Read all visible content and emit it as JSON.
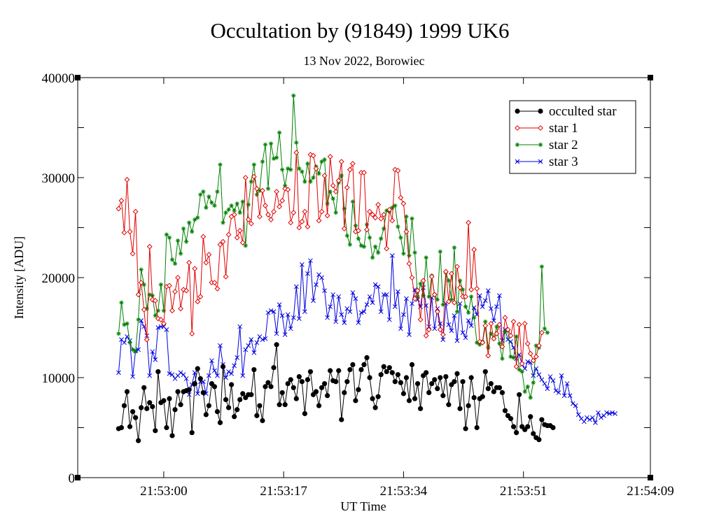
{
  "chart_data": {
    "type": "line",
    "title": "Occultation by (91849) 1999 UK6",
    "subtitle": "13 Nov 2022, Borowiec",
    "xlabel": "UT Time",
    "ylabel": "Intensity [ADU]",
    "x_ticks": [
      "21:53:00",
      "21:53:17",
      "21:53:34",
      "21:53:51",
      "21:54:09"
    ],
    "x_tick_seconds": [
      0,
      17,
      34,
      51,
      69
    ],
    "xlim_seconds": [
      -12.2,
      69
    ],
    "y_ticks": [
      0,
      10000,
      20000,
      30000,
      40000
    ],
    "ylim": [
      0,
      40000
    ],
    "grid": false,
    "legend_position": "top-right",
    "series": [
      {
        "name": "occulted star",
        "color": "#000000",
        "marker": "dot",
        "start_seconds": -6.4,
        "step_seconds": 0.4,
        "values": [
          4900,
          5000,
          7200,
          8600,
          5100,
          6600,
          6000,
          3700,
          7000,
          9000,
          6900,
          7500,
          7100,
          4700,
          10600,
          7500,
          7700,
          5000,
          7900,
          4200,
          6800,
          8600,
          7300,
          8600,
          8700,
          8800,
          4500,
          9400,
          10900,
          9900,
          8500,
          6300,
          7200,
          9400,
          9100,
          6600,
          5500,
          11100,
          7800,
          7000,
          9300,
          6100,
          6800,
          7800,
          8400,
          8000,
          8300,
          8300,
          10800,
          6200,
          7200,
          5700,
          9100,
          9500,
          9100,
          11000,
          13300,
          7300,
          8500,
          7300,
          9400,
          9800,
          9000,
          7900,
          10100,
          9600,
          6400,
          9800,
          10600,
          8300,
          8600,
          7200,
          9000,
          9400,
          8200,
          10700,
          9700,
          9600,
          10700,
          5800,
          8500,
          9600,
          10800,
          11300,
          7700,
          8800,
          10800,
          11300,
          12000,
          10000,
          7900,
          7000,
          8100,
          10300,
          11100,
          10600,
          11000,
          10500,
          9600,
          10300,
          9500,
          8400,
          10000,
          7700,
          11300,
          7900,
          9400,
          6900,
          10200,
          10500,
          8500,
          9400,
          9800,
          8900,
          10000,
          8200,
          10100,
          7300,
          9300,
          9600,
          10400,
          6900,
          9600,
          4900,
          7200,
          10000,
          8000,
          5000,
          7900,
          8100,
          10600,
          8900,
          9400,
          8600,
          9000,
          9000,
          8500,
          6700,
          6200,
          5900,
          5100,
          4500,
          8300,
          5100,
          4800,
          5100,
          6100,
          4400,
          4000,
          3800,
          5800,
          5300,
          5200,
          5200,
          5000
        ]
      },
      {
        "name": "star 1",
        "color": "#e00000",
        "marker": "diamond",
        "start_seconds": -6.4,
        "step_seconds": 0.4,
        "values": [
          26900,
          27700,
          24500,
          29800,
          24600,
          22400,
          26600,
          18300,
          19500,
          16800,
          13800,
          23100,
          17800,
          17700,
          15900,
          15800,
          15400,
          19100,
          19200,
          16700,
          18600,
          20000,
          16900,
          18800,
          18700,
          21500,
          14400,
          20900,
          17600,
          18100,
          24100,
          21500,
          22300,
          19500,
          19500,
          18900,
          23300,
          23600,
          20100,
          24300,
          26100,
          26300,
          24000,
          24700,
          23500,
          30000,
          25800,
          25400,
          30100,
          28900,
          26100,
          28700,
          27200,
          26300,
          25800,
          26600,
          28600,
          27100,
          27700,
          28900,
          28800,
          25500,
          26500,
          32500,
          25000,
          25600,
          26600,
          25100,
          32300,
          32200,
          30900,
          25700,
          26600,
          30200,
          26200,
          32100,
          29200,
          28600,
          29700,
          31600,
          24900,
          29000,
          30800,
          31400,
          24600,
          24700,
          30500,
          30500,
          24800,
          26600,
          26300,
          26000,
          27300,
          25900,
          26300,
          22900,
          26800,
          25700,
          30800,
          30700,
          28000,
          27400,
          24600,
          21400,
          20000,
          17900,
          18700,
          15800,
          19700,
          14200,
          14800,
          20100,
          18300,
          16600,
          14800,
          14300,
          20600,
          17600,
          20400,
          17500,
          21100,
          19000,
          18100,
          18100,
          25500,
          18800,
          22800,
          18900,
          13600,
          13500,
          15200,
          12200,
          15400,
          13900,
          14400,
          15300,
          13100,
          16000,
          14800,
          14200,
          15600,
          11100,
          15300,
          11400,
          15400,
          13400,
          12400,
          11700,
          12100,
          13200,
          14500
        ]
      },
      {
        "name": "star 2",
        "color": "#008000",
        "marker": "star",
        "start_seconds": -6.4,
        "step_seconds": 0.4,
        "values": [
          14400,
          17500,
          15300,
          15400,
          13500,
          12800,
          12600,
          15800,
          20800,
          19300,
          16900,
          18300,
          18200,
          16200,
          16700,
          19300,
          16700,
          24300,
          24000,
          21800,
          21400,
          23700,
          22400,
          24900,
          23600,
          25500,
          24600,
          25800,
          26000,
          28300,
          28600,
          27000,
          28100,
          27500,
          27200,
          28600,
          31300,
          25500,
          26500,
          26800,
          27200,
          26700,
          27400,
          26500,
          27600,
          23200,
          27300,
          29600,
          31300,
          28300,
          28700,
          31600,
          33300,
          28900,
          33400,
          31900,
          32000,
          34500,
          30800,
          29200,
          30900,
          30800,
          38200,
          33500,
          30900,
          30600,
          29600,
          31400,
          29600,
          30000,
          31100,
          30400,
          31600,
          31800,
          27400,
          28600,
          27900,
          26500,
          29500,
          30200,
          26900,
          24200,
          23300,
          27600,
          25200,
          23900,
          23200,
          23100,
          25300,
          24000,
          22000,
          23100,
          22500,
          23900,
          24900,
          26700,
          26600,
          27000,
          27200,
          25100,
          24000,
          22400,
          26100,
          22200,
          25900,
          22500,
          18100,
          19400,
          18200,
          22000,
          18100,
          20200,
          18300,
          17800,
          22600,
          17300,
          20500,
          19700,
          17800,
          23000,
          16600,
          19700,
          18800,
          17100,
          16500,
          18100,
          16000,
          13500,
          13300,
          13600,
          15600,
          13000,
          14400,
          13900,
          15100,
          13400,
          11900,
          14600,
          14700,
          12100,
          12000,
          14100,
          10800,
          10600,
          8600,
          9100,
          8000,
          9500,
          13200,
          13000,
          21100,
          14900,
          14500
        ]
      },
      {
        "name": "star 3",
        "color": "#0000e0",
        "marker": "cross",
        "start_seconds": -6.4,
        "step_seconds": 0.4,
        "values": [
          10500,
          13800,
          13500,
          14100,
          13700,
          10100,
          12700,
          12800,
          15700,
          15100,
          14200,
          10200,
          12600,
          11800,
          15000,
          15100,
          15100,
          14800,
          10400,
          10300,
          9900,
          10200,
          10500,
          10300,
          9900,
          8300,
          9300,
          10500,
          8400,
          9600,
          9600,
          8400,
          10200,
          11700,
          10700,
          10200,
          13200,
          11300,
          10000,
          10600,
          10400,
          11200,
          12000,
          15100,
          10200,
          12800,
          13200,
          13800,
          12500,
          13500,
          14100,
          13800,
          13900,
          16500,
          16700,
          16600,
          14400,
          17300,
          16200,
          14300,
          16300,
          14900,
          16000,
          19100,
          15900,
          21300,
          16600,
          20400,
          21700,
          17700,
          19300,
          20300,
          20000,
          18700,
          16000,
          17100,
          18300,
          15600,
          18100,
          16300,
          15500,
          16900,
          16600,
          18500,
          17900,
          15500,
          16500,
          16600,
          17300,
          18100,
          17500,
          19300,
          19100,
          16600,
          18300,
          18300,
          15800,
          22200,
          17100,
          18600,
          14900,
          16300,
          17900,
          14300,
          17400,
          18800,
          17800,
          17100,
          19000,
          17200,
          15100,
          18000,
          14900,
          16900,
          15400,
          13800,
          17400,
          15300,
          14700,
          16200,
          13700,
          17400,
          14500,
          14000,
          15700,
          15200,
          17000,
          16300,
          18200,
          17100,
          17700,
          18700,
          16900,
          15700,
          17100,
          18200,
          13700,
          14800,
          13800,
          13600,
          13000,
          11900,
          12300,
          11300,
          10900,
          11600,
          11500,
          10200,
          10900,
          10300,
          9800,
          9400,
          8900,
          10100,
          9700,
          8700,
          8500,
          10200,
          8200,
          9400,
          8200,
          7400,
          7200,
          6300,
          5900,
          5600,
          6000,
          5800,
          6000,
          5500,
          6500,
          6000,
          6200,
          6500,
          6400,
          6500,
          6400
        ]
      }
    ]
  }
}
